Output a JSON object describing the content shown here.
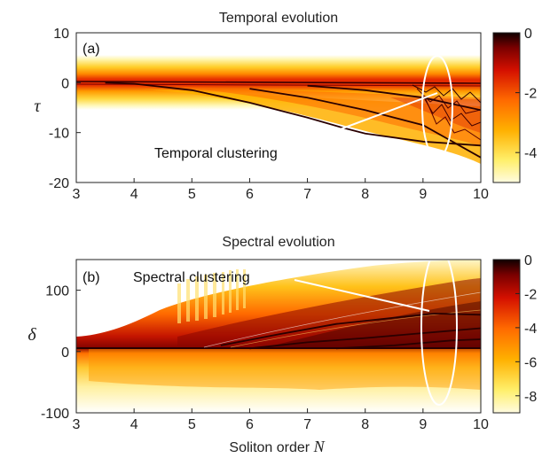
{
  "chart_data": [
    {
      "type": "heatmap",
      "panel": "(a)",
      "title": "Temporal evolution",
      "xlabel": "",
      "ylabel": "τ",
      "xlim": [
        3,
        10
      ],
      "ylim": [
        -20,
        10
      ],
      "xticks": [
        "3",
        "4",
        "5",
        "6",
        "7",
        "8",
        "9",
        "10"
      ],
      "yticks": [
        "10",
        "0",
        "-10",
        "-20"
      ],
      "colorbar": {
        "min": -5,
        "max": 0,
        "ticks": [
          "0",
          "-2",
          "-4"
        ]
      },
      "annotation": "Temporal clustering",
      "traces": [
        {
          "x": [
            3.5,
            4,
            5,
            6,
            7,
            7.6,
            8,
            9,
            10
          ],
          "y": [
            0,
            -0.2,
            -1.5,
            -4,
            -7,
            -9,
            -10.2,
            -11.8,
            -12.6
          ]
        },
        {
          "x": [
            6,
            7,
            8,
            9,
            10
          ],
          "y": [
            -1.2,
            -3,
            -5.5,
            -8.5,
            -15
          ]
        },
        {
          "x": [
            7,
            8,
            9,
            10
          ],
          "y": [
            -0.6,
            -1.5,
            -3,
            -5.5
          ]
        }
      ]
    },
    {
      "type": "heatmap",
      "panel": "(b)",
      "title": "Spectral evolution",
      "xlabel": "Soliton order",
      "xlabel_symbol": "N",
      "ylabel": "δ",
      "xlim": [
        3,
        10
      ],
      "ylim": [
        -100,
        150
      ],
      "xticks": [
        "3",
        "4",
        "5",
        "6",
        "7",
        "8",
        "9",
        "10"
      ],
      "yticks": [
        "100",
        "0",
        "-100"
      ],
      "colorbar": {
        "min": -9,
        "max": 0,
        "ticks": [
          "0",
          "-2",
          "-4",
          "-6",
          "-8"
        ]
      },
      "annotation": "Spectral clustering",
      "traces": [
        {
          "x": [
            5.5,
            6.5,
            7.5,
            8.5,
            9.2,
            10
          ],
          "y": [
            10,
            28,
            45,
            55,
            62,
            60
          ]
        },
        {
          "x": [
            6,
            7,
            8,
            9,
            10
          ],
          "y": [
            5,
            15,
            22,
            30,
            38
          ]
        },
        {
          "x": [
            7.5,
            8.5,
            9.5,
            10
          ],
          "y": [
            5,
            10,
            18,
            20
          ]
        }
      ]
    }
  ]
}
